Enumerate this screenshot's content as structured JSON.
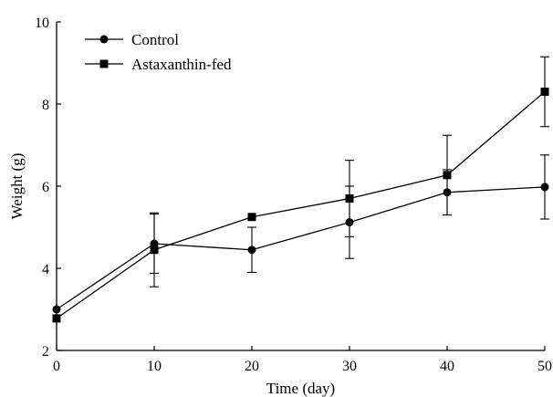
{
  "chart_data": {
    "type": "line",
    "title": "",
    "xlabel": "Time (day)",
    "ylabel": "Weight (g)",
    "xlim": [
      0,
      50
    ],
    "ylim": [
      2,
      10
    ],
    "xticks": [
      0,
      10,
      20,
      30,
      40,
      50
    ],
    "yticks": [
      2,
      4,
      6,
      8,
      10
    ],
    "grid": false,
    "legend_position": "top-left",
    "x": [
      0,
      10,
      20,
      30,
      40,
      50
    ],
    "series": [
      {
        "name": "Control",
        "marker": "circle",
        "color": "#000000",
        "values": [
          3.0,
          4.6,
          4.45,
          5.12,
          5.85,
          5.98
        ],
        "error": [
          0.0,
          0.72,
          0.55,
          0.88,
          0.55,
          0.78
        ]
      },
      {
        "name": "Astaxanthin-fed",
        "marker": "square",
        "color": "#000000",
        "values": [
          2.78,
          4.45,
          5.25,
          5.7,
          6.27,
          8.3
        ],
        "error": [
          0.0,
          0.9,
          0.0,
          0.93,
          0.97,
          0.85
        ]
      }
    ]
  }
}
